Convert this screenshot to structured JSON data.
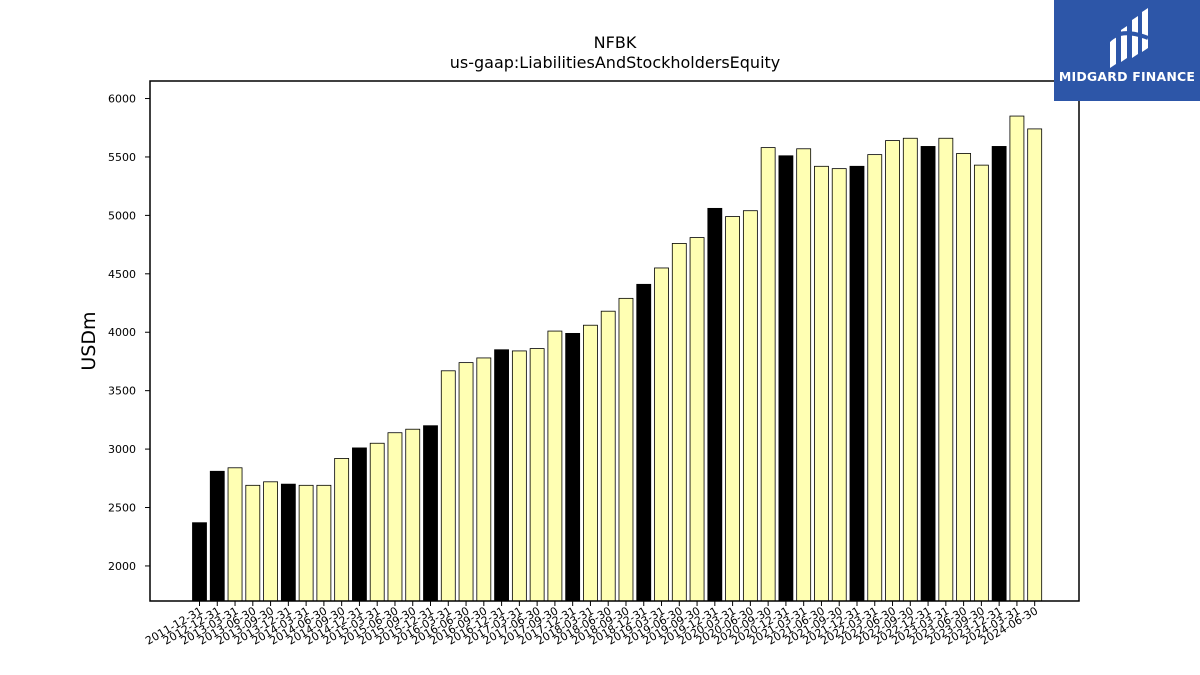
{
  "chart_data": {
    "type": "bar",
    "title": "NFBK",
    "subtitle": "us-gaap:LiabilitiesAndStockholdersEquity",
    "xlabel": "",
    "ylabel": "USDm",
    "ylim": [
      1700,
      6150
    ],
    "yticks": [
      2000,
      2500,
      3000,
      3500,
      4000,
      4500,
      5000,
      5500,
      6000
    ],
    "grid": false,
    "colors": {
      "annual": "#000000",
      "quarterly": "#ffffb3",
      "edge": "#000000"
    },
    "categories": [
      "2011-12-31",
      "2012-12-31",
      "2013-03-31",
      "2013-06-30",
      "2013-09-30",
      "2013-12-31",
      "2014-03-31",
      "2014-06-30",
      "2014-09-30",
      "2014-12-31",
      "2015-03-31",
      "2015-06-30",
      "2015-09-30",
      "2015-12-31",
      "2016-03-31",
      "2016-06-30",
      "2016-09-30",
      "2016-12-31",
      "2017-03-31",
      "2017-06-30",
      "2017-09-30",
      "2017-12-31",
      "2018-03-31",
      "2018-06-30",
      "2018-09-30",
      "2018-12-31",
      "2019-03-31",
      "2019-06-30",
      "2019-09-30",
      "2019-12-31",
      "2020-03-31",
      "2020-06-30",
      "2020-09-30",
      "2020-12-31",
      "2021-03-31",
      "2021-06-30",
      "2021-09-30",
      "2021-12-31",
      "2022-03-31",
      "2022-06-30",
      "2022-09-30",
      "2022-12-31",
      "2023-03-31",
      "2023-06-30",
      "2023-09-30",
      "2023-12-31",
      "2024-03-31",
      "2024-06-30"
    ],
    "values": [
      2370,
      2810,
      2840,
      2690,
      2720,
      2700,
      2690,
      2690,
      2920,
      3010,
      3050,
      3140,
      3170,
      3200,
      3670,
      3740,
      3780,
      3850,
      3840,
      3860,
      4010,
      3990,
      4060,
      4180,
      4290,
      4410,
      4550,
      4760,
      4810,
      5060,
      4990,
      5040,
      5580,
      5510,
      5570,
      5420,
      5400,
      5420,
      5520,
      5640,
      5660,
      5590,
      5660,
      5530,
      5430,
      5590,
      5850,
      5740
    ],
    "annual": [
      true,
      true,
      false,
      false,
      false,
      true,
      false,
      false,
      false,
      true,
      false,
      false,
      false,
      true,
      false,
      false,
      false,
      true,
      false,
      false,
      false,
      true,
      false,
      false,
      false,
      true,
      false,
      false,
      false,
      true,
      false,
      false,
      false,
      true,
      false,
      false,
      false,
      true,
      false,
      false,
      false,
      true,
      false,
      false,
      false,
      true,
      false,
      false
    ]
  },
  "logo": {
    "text": "MIDGARD FINANCE",
    "icon": "midgard-logo-icon",
    "background": "#2d56a8"
  }
}
